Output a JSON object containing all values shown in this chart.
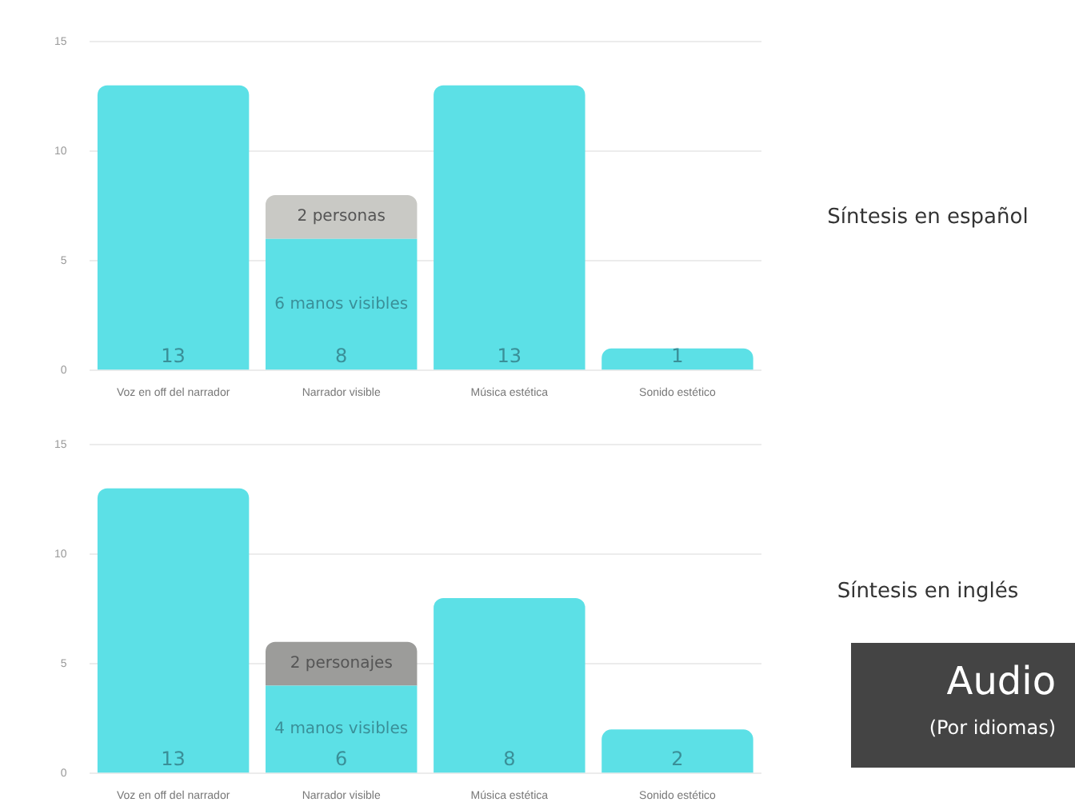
{
  "chart_data": [
    {
      "type": "bar",
      "annotations": [
        "Síntesis en español"
      ],
      "categories": [
        "Voz en off del narrador",
        "Narrador visible",
        "Música estética",
        "Sonido estético"
      ],
      "stacked": true,
      "ylim": [
        0,
        15
      ],
      "yticks": [
        0,
        5,
        10,
        15
      ],
      "grid": "y",
      "series": [
        {
          "color": "#5ce0e6",
          "values": [
            13,
            6,
            13,
            1
          ],
          "value_labels": [
            null,
            "6 manos visibles",
            null,
            null
          ]
        },
        {
          "color": "#c9c9c5",
          "values": [
            null,
            2,
            null,
            null
          ],
          "value_labels": [
            null,
            "2 personas",
            null,
            null
          ]
        }
      ],
      "totals": [
        "13",
        "8",
        "13",
        "1"
      ]
    },
    {
      "type": "bar",
      "categories": [
        "Voz en off del narrador",
        "Narrador visible",
        "Música estética",
        "Sonido estético"
      ],
      "stacked": true,
      "ylim": [
        0,
        15
      ],
      "yticks": [
        0,
        5,
        10,
        15
      ],
      "grid": "y",
      "series": [
        {
          "color": "#5ce0e6",
          "values": [
            13,
            4,
            8,
            2
          ],
          "value_labels": [
            null,
            "4 manos visibles",
            null,
            null
          ]
        },
        {
          "color": "#9c9c9a",
          "values": [
            null,
            2,
            null,
            null
          ],
          "value_labels": [
            null,
            "2 personajes",
            null,
            null
          ]
        }
      ],
      "totals": [
        "13",
        "6",
        "8",
        "2"
      ],
      "annotations": [
        "Síntesis en inglés",
        "Audio",
        "(Por idiomas)"
      ]
    }
  ]
}
